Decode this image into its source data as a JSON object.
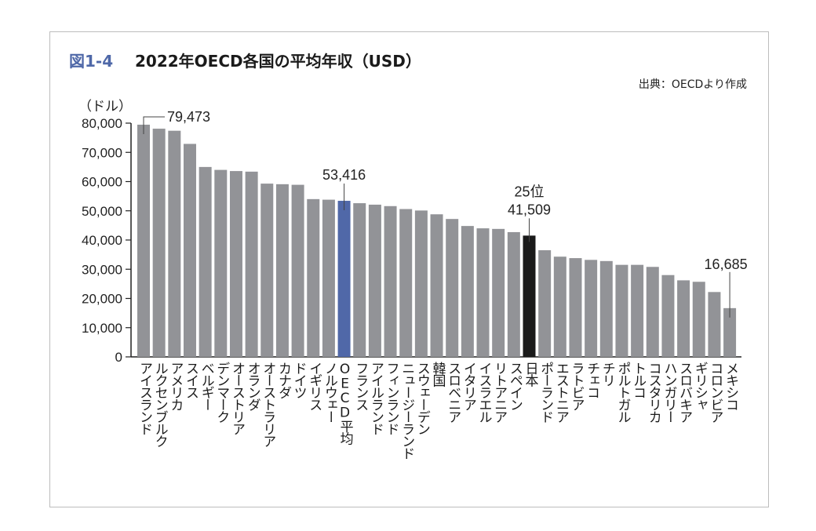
{
  "figure_number": "図1-4",
  "source": "出典：OECDより作成",
  "chart_data": {
    "type": "bar",
    "title": "2022年OECD各国の平均年収（USD）",
    "ylabel": "（ドル）",
    "ylim": [
      0,
      80000
    ],
    "yticks": [
      0,
      10000,
      20000,
      30000,
      40000,
      50000,
      60000,
      70000,
      80000
    ],
    "ytick_labels": [
      "0",
      "10,000",
      "20,000",
      "30,000",
      "40,000",
      "50,000",
      "60,000",
      "70,000",
      "80,000"
    ],
    "grid": false,
    "colors": {
      "default": "#929397",
      "oecd_average": "#5068a8",
      "japan": "#1a1a1a"
    },
    "categories": [
      "アイスランド",
      "ルクセンブルク",
      "アメリカ",
      "スイス",
      "ベルギー",
      "デンマーク",
      "オーストリア",
      "オランダ",
      "オーストラリア",
      "カナダ",
      "ドイツ",
      "イギリス",
      "ノルウェー",
      "OECD平均",
      "フランス",
      "アイルランド",
      "フィンランド",
      "ニュージーランド",
      "スウェーデン",
      "韓国",
      "スロベニア",
      "イタリア",
      "イスラエル",
      "リトアニア",
      "スペイン",
      "日本",
      "ポーランド",
      "エストニア",
      "ラトビア",
      "チェコ",
      "チリ",
      "ポルトガル",
      "トルコ",
      "コスタリカ",
      "ハンガリー",
      "スロバキア",
      "ギリシャ",
      "コロンビア",
      "メキシコ"
    ],
    "values": [
      79473,
      78100,
      77400,
      72900,
      65000,
      64000,
      63600,
      63400,
      59300,
      59100,
      58900,
      54000,
      53800,
      53416,
      52600,
      52100,
      51600,
      50600,
      50100,
      48800,
      47200,
      44800,
      44000,
      43800,
      42700,
      41509,
      36500,
      34300,
      33800,
      33200,
      32800,
      31500,
      31500,
      30800,
      28000,
      26200,
      25700,
      22200,
      16685
    ],
    "highlight": {
      "oecd_average_index": 13,
      "japan_index": 25
    },
    "annotations": [
      {
        "category": "アイスランド",
        "text": "79,473"
      },
      {
        "category": "OECD平均",
        "text": "53,416"
      },
      {
        "category": "日本",
        "text": "41,509",
        "rank": "25位"
      },
      {
        "category": "メキシコ",
        "text": "16,685"
      }
    ]
  }
}
